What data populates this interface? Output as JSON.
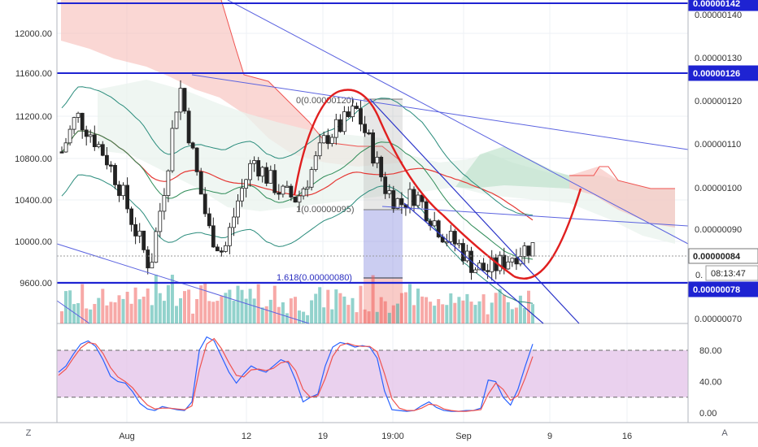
{
  "chart_data": [
    {
      "type": "candlestick",
      "title": "",
      "x_tick_labels": [
        "Aug",
        "12",
        "19",
        "19:00",
        "Sep",
        "9",
        "16"
      ],
      "left_axis": {
        "ticks": [
          9600,
          10000,
          10400,
          10800,
          11200,
          11600,
          12000
        ],
        "tick_labels": [
          "9600.00",
          "10000.00",
          "10400.00",
          "10800.00",
          "11200.00",
          "11600.00",
          "12000.00"
        ],
        "range": [
          9250,
          12300
        ]
      },
      "right_axis": {
        "tick_labels": [
          "0.00000070",
          "0.00000090",
          "0.00000100",
          "0.00000110",
          "0.00000120",
          "0.00000130",
          "0.00000140"
        ],
        "ticks": [
          7e-07,
          9e-07,
          1e-06,
          1.1e-06,
          1.2e-06,
          1.3e-06,
          1.4e-06
        ]
      },
      "highlighted_levels": [
        {
          "value": "0.00000142",
          "color": "#1e23d2"
        },
        {
          "value": "0.00000126",
          "color": "#1e23d2"
        },
        {
          "value": "0.00000084",
          "color": "#555555"
        },
        {
          "value": "0.00000078",
          "color": "#1e23d2"
        }
      ],
      "countdown": "08:13:47",
      "fib_labels": [
        "0(0.00000120)",
        "1(0.00000095)",
        "1.618(0.00000080)"
      ],
      "series": [
        {
          "name": "",
          "kind": "candles",
          "close_trend": [
            10850,
            11200,
            11020,
            10800,
            10500,
            10100,
            9750,
            10550,
            11500,
            10750,
            10100,
            9880,
            10400,
            10780,
            10600,
            10450,
            10400,
            10680,
            11000,
            11100,
            11250,
            10900,
            10500,
            10350,
            10450,
            10250,
            10050,
            9950,
            9750,
            9720,
            9800,
            9900,
            9950
          ]
        },
        {
          "name": "",
          "kind": "ma_red"
        },
        {
          "name": "",
          "kind": "ma_green"
        },
        {
          "name": "",
          "kind": "bollinger"
        }
      ],
      "colors": {
        "up": "#26a69a",
        "down": "#ef5350",
        "level": "#1e23d2",
        "cloud_red": "#f5b7b1",
        "cloud_green": "#b7dfc6"
      }
    },
    {
      "type": "line",
      "title": "",
      "y_tick_labels": [
        "0.00",
        "40.00",
        "80.00"
      ],
      "ticks": [
        0,
        40,
        80
      ],
      "ylim": [
        -5,
        100
      ],
      "band": [
        20,
        80
      ],
      "series": [
        {
          "name": "",
          "color": "#2962ff",
          "values": [
            52,
            60,
            75,
            88,
            92,
            85,
            68,
            47,
            40,
            38,
            27,
            12,
            5,
            3,
            8,
            6,
            4,
            3,
            14,
            80,
            97,
            92,
            72,
            52,
            38,
            50,
            60,
            55,
            52,
            60,
            68,
            64,
            42,
            14,
            20,
            24,
            60,
            84,
            90,
            88,
            84,
            86,
            84,
            70,
            28,
            4,
            3,
            2,
            3,
            9,
            14,
            7,
            3,
            2,
            2,
            3,
            3,
            6,
            42,
            40,
            20,
            10,
            30,
            60,
            88
          ]
        },
        {
          "name": "",
          "color": "#ef5350",
          "values": [
            48,
            56,
            70,
            83,
            90,
            88,
            76,
            58,
            46,
            40,
            32,
            20,
            10,
            5,
            6,
            6,
            5,
            4,
            9,
            55,
            88,
            95,
            82,
            64,
            48,
            46,
            55,
            56,
            54,
            57,
            64,
            66,
            54,
            30,
            20,
            22,
            44,
            72,
            86,
            89,
            86,
            85,
            85,
            78,
            50,
            18,
            6,
            3,
            3,
            6,
            11,
            10,
            5,
            3,
            2,
            2,
            3,
            4,
            24,
            38,
            30,
            16,
            22,
            45,
            72
          ]
        }
      ]
    }
  ],
  "bottom_left_label": "Z",
  "bottom_right_label": "A"
}
